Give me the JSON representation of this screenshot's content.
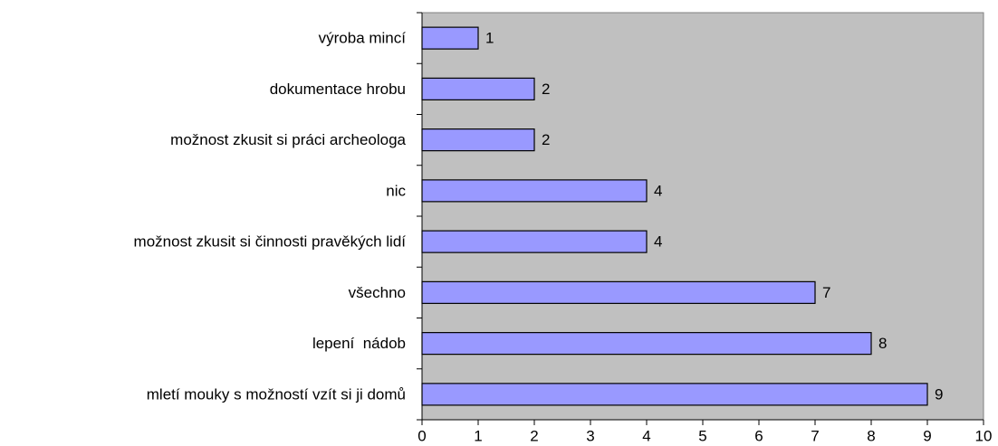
{
  "chart_data": {
    "type": "barh",
    "categories": [
      "výroba mincí",
      "dokumentace hrobu",
      "možnost zkusit si práci archeologa",
      "nic",
      "možnost zkusit si činnosti pravěkých lidí",
      "všechno",
      "lepení  nádob",
      "mletí mouky s možností vzít si ji domů"
    ],
    "values": [
      1,
      2,
      2,
      4,
      4,
      7,
      8,
      9
    ],
    "color": "#9999ff",
    "background": "#c0c0c0",
    "xlim": [
      0,
      10
    ],
    "xticks": [
      0,
      1,
      2,
      3,
      4,
      5,
      6,
      7,
      8,
      9,
      10
    ],
    "grid": false
  }
}
